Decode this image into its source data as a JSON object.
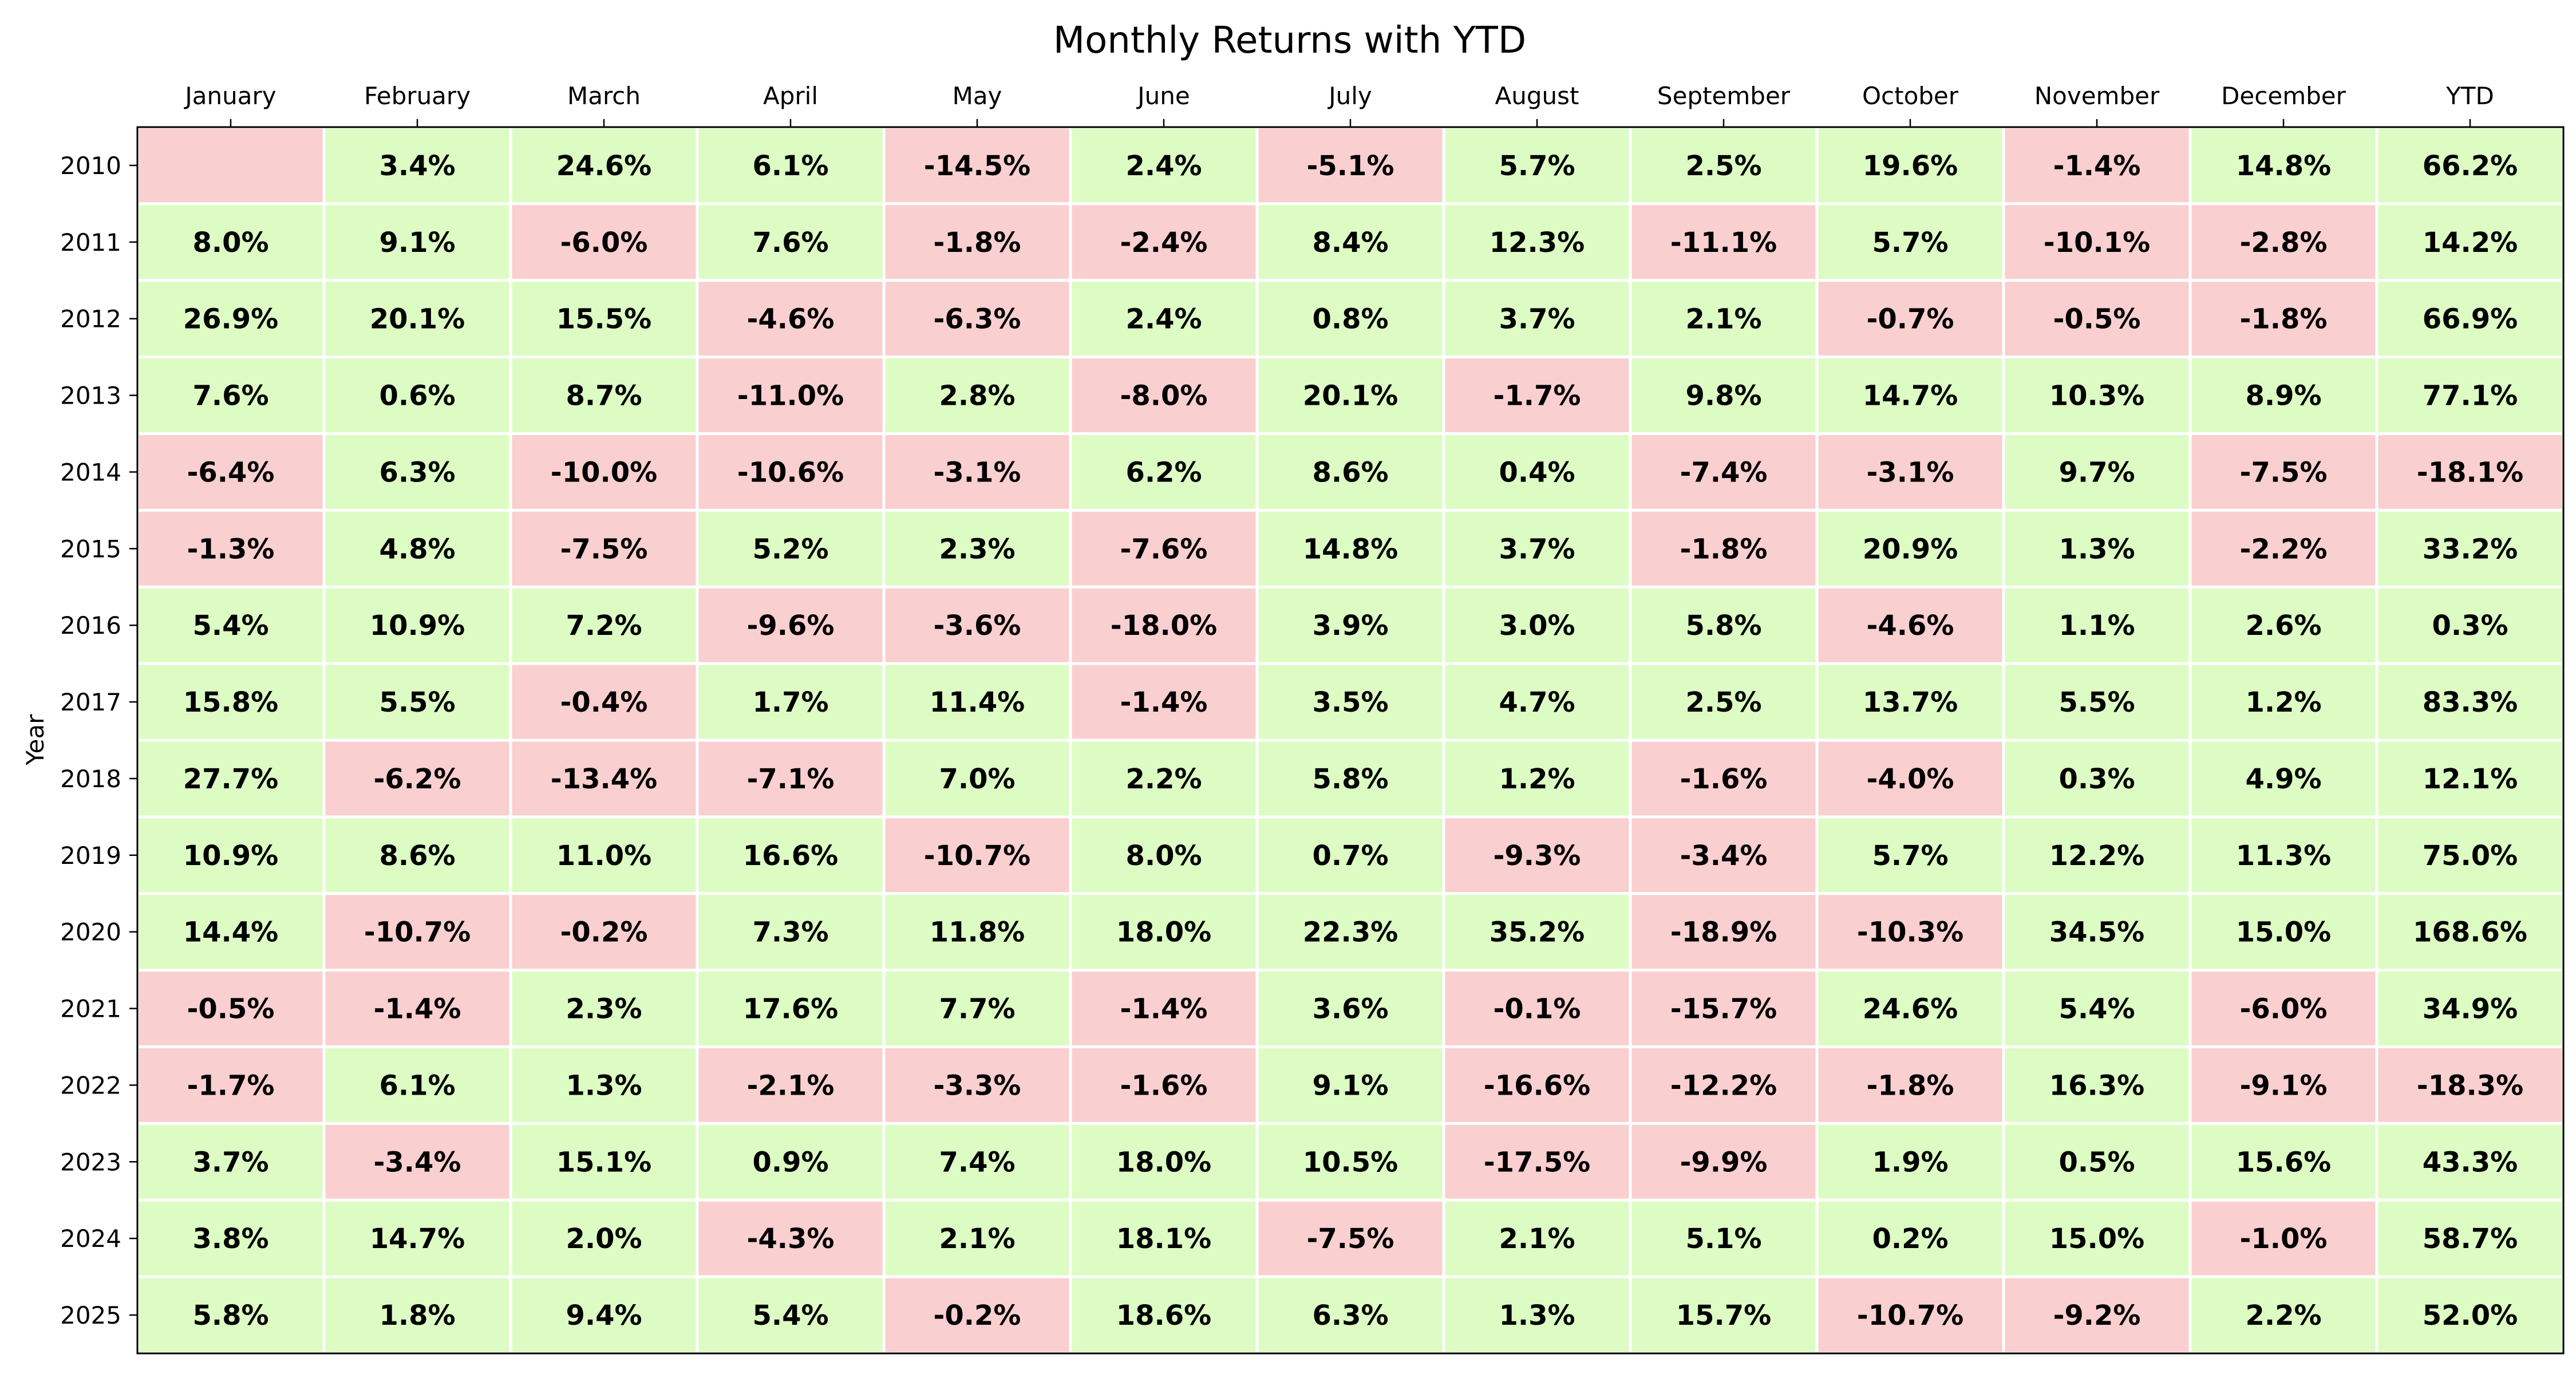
{
  "chart_data": {
    "type": "heatmap",
    "title": "Monthly Returns with YTD",
    "xlabel": "",
    "ylabel": "Year",
    "columns": [
      "January",
      "February",
      "March",
      "April",
      "May",
      "June",
      "July",
      "August",
      "September",
      "October",
      "November",
      "December",
      "YTD"
    ],
    "rows": [
      "2010",
      "2011",
      "2012",
      "2013",
      "2014",
      "2015",
      "2016",
      "2017",
      "2018",
      "2019",
      "2020",
      "2021",
      "2022",
      "2023",
      "2024",
      "2025"
    ],
    "value_suffix": "%",
    "values": [
      [
        null,
        3.4,
        24.6,
        6.1,
        -14.5,
        2.4,
        -5.1,
        5.7,
        2.5,
        19.6,
        -1.4,
        14.8,
        66.2
      ],
      [
        8.0,
        9.1,
        -6.0,
        7.6,
        -1.8,
        -2.4,
        8.4,
        12.3,
        -11.1,
        5.7,
        -10.1,
        -2.8,
        14.2
      ],
      [
        26.9,
        20.1,
        15.5,
        -4.6,
        -6.3,
        2.4,
        0.8,
        3.7,
        2.1,
        -0.7,
        -0.5,
        -1.8,
        66.9
      ],
      [
        7.6,
        0.6,
        8.7,
        -11.0,
        2.8,
        -8.0,
        20.1,
        -1.7,
        9.8,
        14.7,
        10.3,
        8.9,
        77.1
      ],
      [
        -6.4,
        6.3,
        -10.0,
        -10.6,
        -3.1,
        6.2,
        8.6,
        0.4,
        -7.4,
        -3.1,
        9.7,
        -7.5,
        -18.1
      ],
      [
        -1.3,
        4.8,
        -7.5,
        5.2,
        2.3,
        -7.6,
        14.8,
        3.7,
        -1.8,
        20.9,
        1.3,
        -2.2,
        33.2
      ],
      [
        5.4,
        10.9,
        7.2,
        -9.6,
        -3.6,
        -18.0,
        3.9,
        3.0,
        5.8,
        -4.6,
        1.1,
        2.6,
        0.3
      ],
      [
        15.8,
        5.5,
        -0.4,
        1.7,
        11.4,
        -1.4,
        3.5,
        4.7,
        2.5,
        13.7,
        5.5,
        1.2,
        83.3
      ],
      [
        27.7,
        -6.2,
        -13.4,
        -7.1,
        7.0,
        2.2,
        5.8,
        1.2,
        -1.6,
        -4.0,
        0.3,
        4.9,
        12.1
      ],
      [
        10.9,
        8.6,
        11.0,
        16.6,
        -10.7,
        8.0,
        0.7,
        -9.3,
        -3.4,
        5.7,
        12.2,
        11.3,
        75.0
      ],
      [
        14.4,
        -10.7,
        -0.2,
        7.3,
        11.8,
        18.0,
        22.3,
        35.2,
        -18.9,
        -10.3,
        34.5,
        15.0,
        168.6
      ],
      [
        -0.5,
        -1.4,
        2.3,
        17.6,
        7.7,
        -1.4,
        3.6,
        -0.1,
        -15.7,
        24.6,
        5.4,
        -6.0,
        34.9
      ],
      [
        -1.7,
        6.1,
        1.3,
        -2.1,
        -3.3,
        -1.6,
        9.1,
        -16.6,
        -12.2,
        -1.8,
        16.3,
        -9.1,
        -18.3
      ],
      [
        3.7,
        -3.4,
        15.1,
        0.9,
        7.4,
        18.0,
        10.5,
        -17.5,
        -9.9,
        1.9,
        0.5,
        15.6,
        43.3
      ],
      [
        3.8,
        14.7,
        2.0,
        -4.3,
        2.1,
        18.1,
        -7.5,
        2.1,
        5.1,
        0.2,
        15.0,
        -1.0,
        58.7
      ],
      [
        5.8,
        1.8,
        9.4,
        5.4,
        -0.2,
        18.6,
        6.3,
        1.3,
        15.7,
        -10.7,
        -9.2,
        2.2,
        52.0
      ]
    ],
    "colors": {
      "positive": "#dcfcc4",
      "negative": "#facfd0",
      "cell_border": "#ffffff",
      "frame": "#000000"
    },
    "grid": false,
    "legend": "none"
  }
}
